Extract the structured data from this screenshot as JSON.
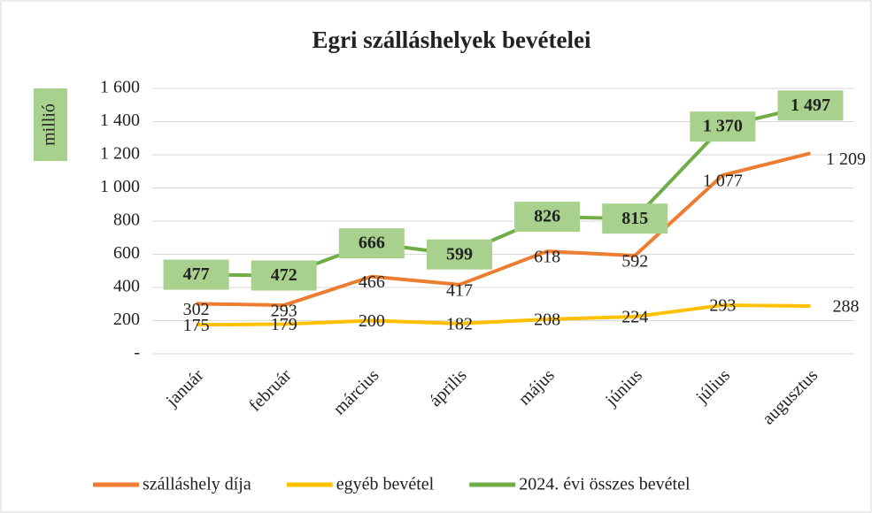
{
  "chart_data": {
    "type": "line",
    "title": "Egri szálláshelyek bevételei",
    "y_label": "millió",
    "categories": [
      "január",
      "február",
      "március",
      "április",
      "május",
      "június",
      "július",
      "augusztus"
    ],
    "series": [
      {
        "name": "szálláshely díja",
        "color": "#ed7d31",
        "values": [
          302,
          293,
          466,
          417,
          618,
          592,
          1077,
          1209
        ],
        "value_labels": [
          "302",
          "293",
          "466",
          "417",
          "618",
          "592",
          "1 077",
          "1 209"
        ]
      },
      {
        "name": "egyéb bevétel",
        "color": "#ffc000",
        "values": [
          175,
          179,
          200,
          182,
          208,
          224,
          293,
          288
        ],
        "value_labels": [
          "175",
          "179",
          "200",
          "182",
          "208",
          "224",
          "293",
          "288"
        ]
      },
      {
        "name": "2024. évi összes bevétel",
        "color": "#70ad47",
        "values": [
          477,
          472,
          666,
          599,
          826,
          815,
          1370,
          1497
        ],
        "value_labels": [
          "477",
          "472",
          "666",
          "599",
          "826",
          "815",
          "1 370",
          "1 497"
        ]
      }
    ],
    "ylim": [
      0,
      1600
    ],
    "yticks": [
      {
        "value": 0,
        "label": "-"
      },
      200,
      400,
      600,
      800,
      {
        "value": 1000,
        "label": "1 000"
      },
      {
        "value": 1200,
        "label": "1 200"
      },
      {
        "value": 1400,
        "label": "1 400"
      },
      {
        "value": 1600,
        "label": "1 600"
      }
    ],
    "grid": true,
    "legend": "bottom"
  }
}
